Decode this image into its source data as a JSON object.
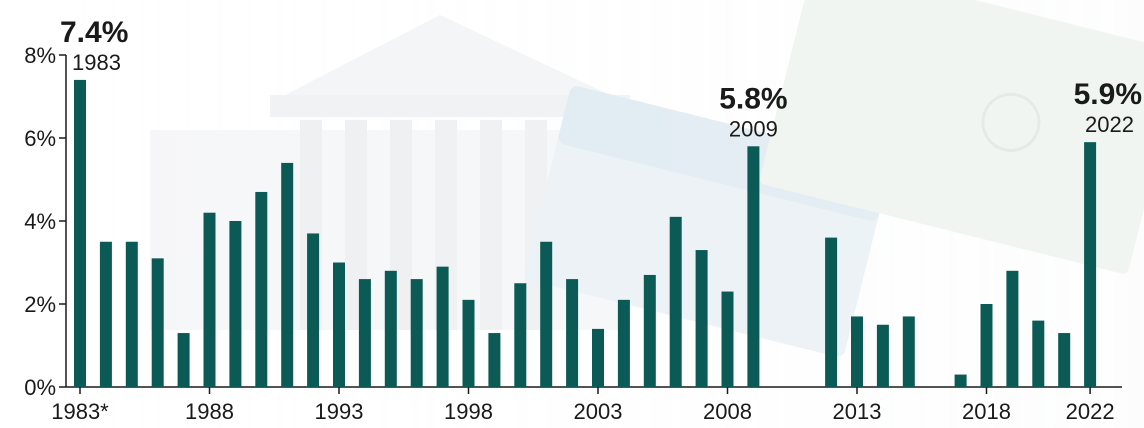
{
  "chart_data": {
    "type": "bar",
    "categories": [
      "1983*",
      "1984",
      "1985",
      "1986",
      "1987",
      "1988",
      "1989",
      "1990",
      "1991",
      "1992",
      "1993",
      "1994",
      "1995",
      "1996",
      "1997",
      "1998",
      "1999",
      "2000",
      "2001",
      "2002",
      "2003",
      "2004",
      "2005",
      "2006",
      "2007",
      "2008",
      "2009",
      "2010",
      "2011",
      "2012",
      "2013",
      "2014",
      "2015",
      "2016",
      "2017",
      "2018",
      "2019",
      "2020",
      "2021",
      "2022"
    ],
    "values": [
      7.4,
      3.5,
      3.5,
      3.1,
      1.3,
      4.2,
      4.0,
      4.7,
      5.4,
      3.7,
      3.0,
      2.6,
      2.8,
      2.6,
      2.9,
      2.1,
      1.3,
      2.5,
      3.5,
      2.6,
      1.4,
      2.1,
      2.7,
      4.1,
      3.3,
      2.3,
      5.8,
      0,
      0,
      3.6,
      1.7,
      1.5,
      1.7,
      0,
      0.3,
      2.0,
      2.8,
      1.6,
      1.3,
      5.9
    ],
    "x_tick_labels": [
      "1983*",
      "1988",
      "1993",
      "1998",
      "2003",
      "2008",
      "2013",
      "2018",
      "2022"
    ],
    "y_ticks": [
      "0%",
      "2%",
      "4%",
      "6%",
      "8%"
    ],
    "ylim": [
      0,
      8
    ],
    "annotations": [
      {
        "value": "7.4%",
        "year": "1983",
        "index": 0
      },
      {
        "value": "5.8%",
        "year": "2009",
        "index": 26
      },
      {
        "value": "5.9%",
        "year": "2022",
        "index": 39
      }
    ],
    "bar_color": "#0b5a55",
    "grid": false
  }
}
